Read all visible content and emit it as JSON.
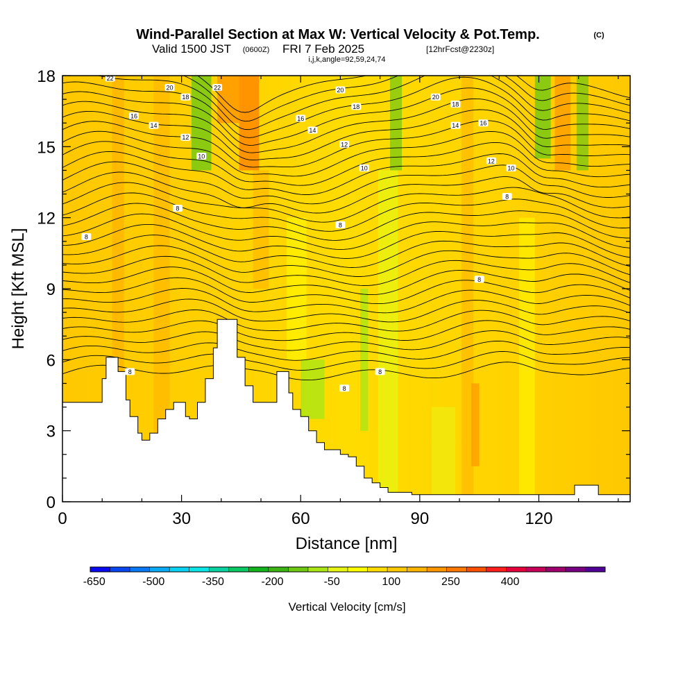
{
  "title": {
    "main": "Wind-Parallel Section at Max W: Vertical Velocity & Pot.Temp.",
    "copyright": "(C)",
    "valid_prefix": "Valid 1500 JST",
    "valid_utc": "(0600Z)",
    "valid_date": "FRI 7 Feb 2025",
    "forecast": "[12hrFcst@2230z]",
    "indices": "i,j,k,angle=92,59,24,74"
  },
  "chart_data": {
    "type": "heatmap",
    "xlabel": "Distance [nm]",
    "ylabel": "Height [Kft MSL]",
    "xlim": [
      0,
      143
    ],
    "ylim": [
      0,
      18
    ],
    "x_ticks": [
      "0",
      "30",
      "60",
      "90",
      "120"
    ],
    "y_ticks": [
      "0",
      "3",
      "6",
      "9",
      "12",
      "15",
      "18"
    ],
    "colorbar": {
      "label": "Vertical Velocity [cm/s]",
      "tick_labels": [
        "-650",
        "-500",
        "-350",
        "-200",
        "-50",
        "100",
        "250",
        "400"
      ],
      "colors": [
        "#0a0af0",
        "#0a46f0",
        "#0a78f5",
        "#0aaaf5",
        "#0ad2f5",
        "#0ae6e6",
        "#0ad2a0",
        "#0ac864",
        "#14b41e",
        "#3cb414",
        "#6ec814",
        "#aae614",
        "#e6f514",
        "#ffff00",
        "#ffdc00",
        "#ffc800",
        "#ffb400",
        "#ff9600",
        "#ff7800",
        "#ff5000",
        "#ff1e1e",
        "#e6003c",
        "#c8005a",
        "#a0006e",
        "#780082",
        "#500096"
      ]
    },
    "terrain": [
      [
        0,
        4.2
      ],
      [
        8,
        4.2
      ],
      [
        10,
        5.2
      ],
      [
        11,
        6.1
      ],
      [
        13,
        6.1
      ],
      [
        14,
        5.5
      ],
      [
        16,
        4.3
      ],
      [
        17,
        3.6
      ],
      [
        19,
        2.9
      ],
      [
        20,
        2.6
      ],
      [
        22,
        2.9
      ],
      [
        24,
        3.5
      ],
      [
        26,
        3.9
      ],
      [
        28,
        4.2
      ],
      [
        30,
        4.2
      ],
      [
        31,
        3.6
      ],
      [
        32,
        3.5
      ],
      [
        34,
        4.2
      ],
      [
        36,
        5.2
      ],
      [
        38,
        6.5
      ],
      [
        39,
        7.7
      ],
      [
        42,
        7.7
      ],
      [
        44,
        6.1
      ],
      [
        46,
        4.9
      ],
      [
        48,
        4.2
      ],
      [
        52,
        4.2
      ],
      [
        54,
        5.5
      ],
      [
        56,
        5.5
      ],
      [
        57,
        4.6
      ],
      [
        58,
        3.9
      ],
      [
        60,
        3.6
      ],
      [
        62,
        3.0
      ],
      [
        64,
        2.5
      ],
      [
        66,
        2.2
      ],
      [
        68,
        2.2
      ],
      [
        70,
        2.0
      ],
      [
        72,
        1.9
      ],
      [
        74,
        1.5
      ],
      [
        76,
        1.0
      ],
      [
        78,
        0.8
      ],
      [
        80,
        0.6
      ],
      [
        82,
        0.4
      ],
      [
        88,
        0.3
      ],
      [
        128,
        0.3
      ],
      [
        129,
        0.7
      ],
      [
        134,
        0.7
      ],
      [
        135,
        0.3
      ],
      [
        143,
        0.3
      ]
    ],
    "theta_contour_labels": [
      {
        "text": "22",
        "x": 12,
        "y": 17.9
      },
      {
        "text": "20",
        "x": 27,
        "y": 17.5
      },
      {
        "text": "22",
        "x": 39,
        "y": 17.5
      },
      {
        "text": "18",
        "x": 31,
        "y": 17.1
      },
      {
        "text": "16",
        "x": 18,
        "y": 16.3
      },
      {
        "text": "14",
        "x": 23,
        "y": 15.9
      },
      {
        "text": "12",
        "x": 31,
        "y": 15.4
      },
      {
        "text": "10",
        "x": 35,
        "y": 14.6
      },
      {
        "text": "8",
        "x": 29,
        "y": 12.4
      },
      {
        "text": "8",
        "x": 6,
        "y": 11.2
      },
      {
        "text": "20",
        "x": 70,
        "y": 17.4
      },
      {
        "text": "18",
        "x": 74,
        "y": 16.7
      },
      {
        "text": "16",
        "x": 60,
        "y": 16.2
      },
      {
        "text": "14",
        "x": 63,
        "y": 15.7
      },
      {
        "text": "12",
        "x": 71,
        "y": 15.1
      },
      {
        "text": "10",
        "x": 76,
        "y": 14.1
      },
      {
        "text": "8",
        "x": 70,
        "y": 11.7
      },
      {
        "text": "20",
        "x": 94,
        "y": 17.1
      },
      {
        "text": "18",
        "x": 99,
        "y": 16.8
      },
      {
        "text": "14",
        "x": 99,
        "y": 15.9
      },
      {
        "text": "16",
        "x": 106,
        "y": 16.0
      },
      {
        "text": "12",
        "x": 108,
        "y": 14.4
      },
      {
        "text": "10",
        "x": 113,
        "y": 14.1
      },
      {
        "text": "8",
        "x": 112,
        "y": 12.9
      },
      {
        "text": "8",
        "x": 105,
        "y": 9.4
      },
      {
        "text": "8",
        "x": 17,
        "y": 5.5
      },
      {
        "text": "8",
        "x": 71,
        "y": 4.8
      },
      {
        "text": "8",
        "x": 80,
        "y": 5.5
      }
    ]
  }
}
